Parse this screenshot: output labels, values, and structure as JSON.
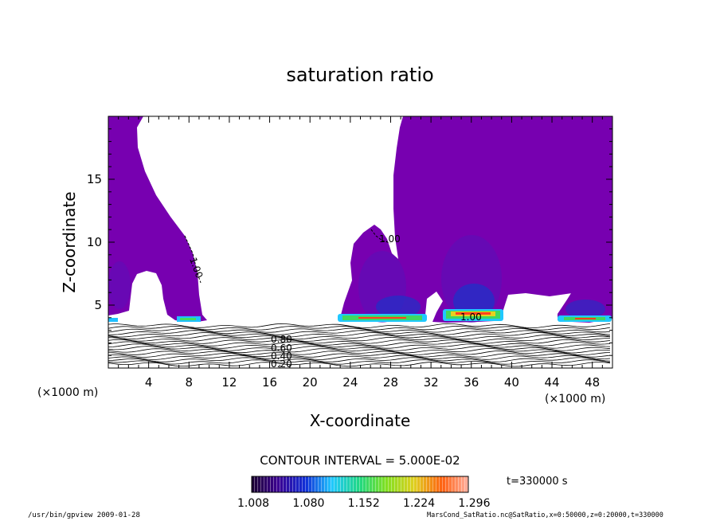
{
  "chart_data": {
    "type": "heatmap",
    "title": "saturation ratio",
    "xlabel": "X-coordinate",
    "ylabel": "Z-coordinate",
    "x_unit": "(×1000 m)",
    "xlim": [
      0,
      50
    ],
    "ylim": [
      0,
      20
    ],
    "x_ticks": [
      "4",
      "8",
      "12",
      "16",
      "20",
      "24",
      "28",
      "32",
      "36",
      "40",
      "44",
      "48"
    ],
    "y_ticks": [
      "5",
      "10",
      "15"
    ],
    "contour_interval": "CONTOUR INTERVAL = 5.000E-02",
    "colorbar_ticks": [
      "1.008",
      "1.080",
      "1.152",
      "1.224",
      "1.296"
    ],
    "time_label": "t=330000 s",
    "contour_labels": [
      "1.00",
      "1.00",
      "1.00",
      "0.80",
      "0.60",
      "0.40",
      "0.20"
    ],
    "colors": {
      "saturated_fill": "#7700b0",
      "background": "#ffffff"
    },
    "footer_left": "/usr/bin/gpview   2009-01-28",
    "footer_right": "MarsCond_SatRatio.nc@SatRatio,x=0:50000,z=0:20000,t=330000"
  }
}
